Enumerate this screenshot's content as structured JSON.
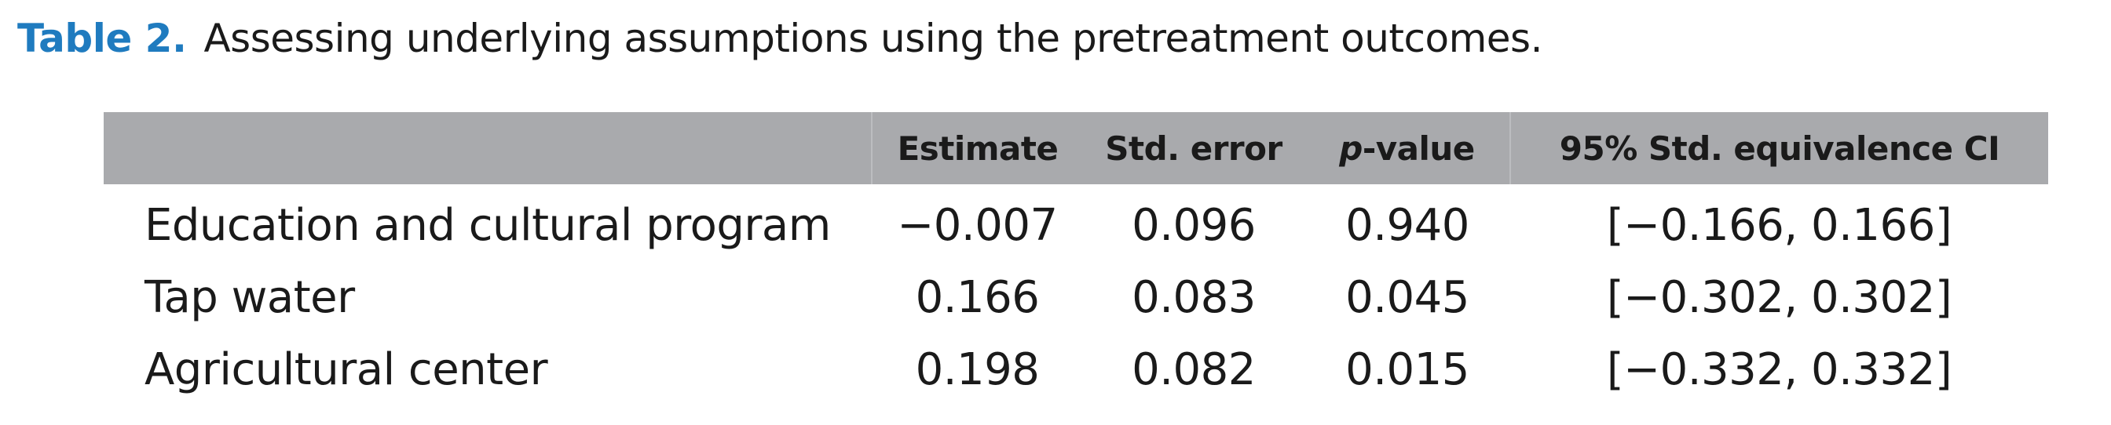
{
  "caption": {
    "label": "Table 2.",
    "text": "Assessing underlying assumptions using the pretreatment outcomes."
  },
  "table": {
    "headers": {
      "col0": "",
      "estimate": "Estimate",
      "std_error": "Std. error",
      "pvalue_italic": "p",
      "pvalue_rest": "-value",
      "ci": "95% Std. equivalence CI"
    },
    "rows": [
      {
        "label": "Education and cultural program",
        "estimate": "−0.007",
        "std_error": "0.096",
        "pvalue": "0.940",
        "ci": "[−0.166, 0.166]"
      },
      {
        "label": "Tap water",
        "estimate": "0.166",
        "std_error": "0.083",
        "pvalue": "0.045",
        "ci": "[−0.302, 0.302]"
      },
      {
        "label": "Agricultural center",
        "estimate": "0.198",
        "std_error": "0.082",
        "pvalue": "0.015",
        "ci": "[−0.332, 0.332]"
      }
    ]
  },
  "colors": {
    "caption_label": "#1f7bbf",
    "header_bg": "#a9aaad",
    "text": "#1a1a1a"
  }
}
